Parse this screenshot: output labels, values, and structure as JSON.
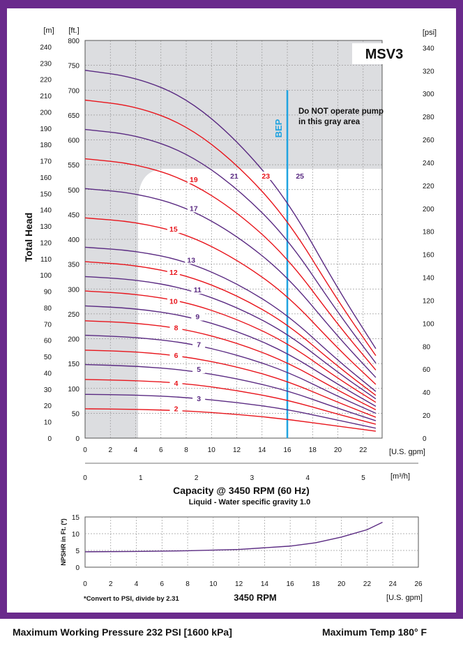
{
  "chart_data": [
    {
      "type": "line",
      "title": "MSV3",
      "xlabel": "Capacity @ 3450 RPM (60 Hz)",
      "x_unit_primary": "[U.S. gpm]",
      "x_unit_secondary": "[m³/h]",
      "subtitle": "Liquid - Water specific gravity 1.0",
      "ylabel": "Total Head",
      "y_unit_m": "[m]",
      "y_unit_ft": "[ft.]",
      "y2_unit": "[psi]",
      "xlim": [
        0,
        23.5
      ],
      "ylim_ft": [
        0,
        800
      ],
      "x_ticks": [
        "0",
        "2",
        "4",
        "6",
        "8",
        "10",
        "12",
        "14",
        "16",
        "18",
        "20",
        "22"
      ],
      "x_secondary_ticks": [
        "0",
        "1",
        "2",
        "3",
        "4",
        "5"
      ],
      "y_ft_ticks": [
        "0",
        "50",
        "100",
        "150",
        "200",
        "250",
        "300",
        "350",
        "400",
        "450",
        "500",
        "550",
        "600",
        "650",
        "700",
        "750",
        "800"
      ],
      "y_m_ticks": [
        "0",
        "10",
        "20",
        "30",
        "40",
        "50",
        "60",
        "70",
        "80",
        "90",
        "100",
        "110",
        "120",
        "130",
        "140",
        "150",
        "160",
        "170",
        "180",
        "190",
        "200",
        "210",
        "220",
        "230",
        "240"
      ],
      "y_psi_ticks": [
        "0",
        "20",
        "40",
        "60",
        "80",
        "100",
        "120",
        "140",
        "160",
        "180",
        "200",
        "220",
        "240",
        "260",
        "280",
        "300",
        "320",
        "340"
      ],
      "bep_label": "BEP",
      "bep_x": 16,
      "warning_text": [
        "Do NOT operate pump",
        "in this gray area"
      ],
      "series": [
        {
          "name": "2",
          "color": "#e8141b",
          "x": [
            0,
            4,
            8,
            12,
            16,
            20,
            23
          ],
          "y": [
            59,
            58,
            55,
            48,
            38,
            24,
            14
          ]
        },
        {
          "name": "3",
          "color": "#5a2a82",
          "x": [
            0,
            4,
            8,
            12,
            16,
            20,
            23
          ],
          "y": [
            88,
            87,
            82,
            72,
            58,
            36,
            20
          ]
        },
        {
          "name": "4",
          "color": "#e8141b",
          "x": [
            0,
            4,
            8,
            12,
            16,
            20,
            23
          ],
          "y": [
            118,
            116,
            110,
            96,
            77,
            48,
            28
          ]
        },
        {
          "name": "5",
          "color": "#5a2a82",
          "x": [
            0,
            4,
            8,
            12,
            16,
            20,
            23
          ],
          "y": [
            148,
            145,
            137,
            120,
            96,
            60,
            35
          ]
        },
        {
          "name": "6",
          "color": "#e8141b",
          "x": [
            0,
            4,
            8,
            12,
            16,
            20,
            23
          ],
          "y": [
            177,
            174,
            164,
            144,
            115,
            72,
            42
          ]
        },
        {
          "name": "7",
          "color": "#5a2a82",
          "x": [
            0,
            4,
            8,
            12,
            16,
            20,
            23
          ],
          "y": [
            207,
            203,
            192,
            168,
            134,
            84,
            50
          ]
        },
        {
          "name": "8",
          "color": "#e8141b",
          "x": [
            0,
            4,
            8,
            12,
            16,
            20,
            23
          ],
          "y": [
            236,
            232,
            219,
            192,
            153,
            96,
            57
          ]
        },
        {
          "name": "9",
          "color": "#5a2a82",
          "x": [
            0,
            4,
            8,
            12,
            16,
            20,
            23
          ],
          "y": [
            266,
            261,
            246,
            216,
            172,
            108,
            64
          ]
        },
        {
          "name": "10",
          "color": "#e8141b",
          "x": [
            0,
            4,
            8,
            12,
            16,
            20,
            23
          ],
          "y": [
            296,
            290,
            274,
            240,
            192,
            120,
            72
          ]
        },
        {
          "name": "11",
          "color": "#5a2a82",
          "x": [
            0,
            4,
            8,
            12,
            16,
            20,
            23
          ],
          "y": [
            325,
            319,
            301,
            264,
            211,
            132,
            79
          ]
        },
        {
          "name": "12",
          "color": "#e8141b",
          "x": [
            0,
            4,
            8,
            12,
            16,
            20,
            23
          ],
          "y": [
            355,
            348,
            328,
            288,
            230,
            144,
            86
          ]
        },
        {
          "name": "13",
          "color": "#5a2a82",
          "x": [
            0,
            4,
            8,
            12,
            16,
            20,
            23
          ],
          "y": [
            384,
            377,
            356,
            312,
            249,
            156,
            94
          ]
        },
        {
          "name": "15",
          "color": "#e8141b",
          "x": [
            0,
            4,
            8,
            12,
            16,
            20,
            23
          ],
          "y": [
            443,
            435,
            411,
            360,
            288,
            180,
            108
          ]
        },
        {
          "name": "17",
          "color": "#5a2a82",
          "x": [
            0,
            4,
            8,
            12,
            16,
            20,
            23
          ],
          "y": [
            502,
            493,
            465,
            408,
            326,
            204,
            122
          ]
        },
        {
          "name": "19",
          "color": "#e8141b",
          "x": [
            0,
            4,
            8,
            12,
            16,
            20,
            23
          ],
          "y": [
            562,
            552,
            520,
            456,
            364,
            228,
            137
          ]
        },
        {
          "name": "21",
          "color": "#5a2a82",
          "x": [
            0,
            4,
            8,
            12,
            16,
            20,
            23
          ],
          "y": [
            621,
            610,
            575,
            504,
            403,
            252,
            151
          ]
        },
        {
          "name": "23",
          "color": "#e8141b",
          "x": [
            0,
            4,
            8,
            12,
            16,
            20,
            23
          ],
          "y": [
            680,
            668,
            630,
            552,
            441,
            276,
            166
          ]
        },
        {
          "name": "25",
          "color": "#5a2a82",
          "x": [
            0,
            4,
            8,
            12,
            16,
            20,
            23
          ],
          "y": [
            740,
            726,
            685,
            600,
            480,
            300,
            180
          ]
        }
      ],
      "curve_labels": [
        {
          "name": "2",
          "x": 7.2,
          "y": 57
        },
        {
          "name": "3",
          "x": 9.0,
          "y": 77
        },
        {
          "name": "4",
          "x": 7.2,
          "y": 108
        },
        {
          "name": "5",
          "x": 9.0,
          "y": 136
        },
        {
          "name": "6",
          "x": 7.2,
          "y": 164
        },
        {
          "name": "7",
          "x": 9.0,
          "y": 186
        },
        {
          "name": "8",
          "x": 7.2,
          "y": 220
        },
        {
          "name": "9",
          "x": 8.9,
          "y": 242
        },
        {
          "name": "10",
          "x": 7.0,
          "y": 273
        },
        {
          "name": "11",
          "x": 8.9,
          "y": 296
        },
        {
          "name": "12",
          "x": 7.0,
          "y": 331
        },
        {
          "name": "13",
          "x": 8.4,
          "y": 356
        },
        {
          "name": "15",
          "x": 7.0,
          "y": 418
        },
        {
          "name": "17",
          "x": 8.6,
          "y": 460
        },
        {
          "name": "19",
          "x": 8.6,
          "y": 518
        },
        {
          "name": "21",
          "x": 11.8,
          "y": 525
        },
        {
          "name": "23",
          "x": 14.3,
          "y": 525
        },
        {
          "name": "25",
          "x": 17.0,
          "y": 525
        }
      ]
    },
    {
      "type": "line",
      "xlabel": "3450 RPM",
      "x_unit": "[U.S. gpm]",
      "ylabel": "NPSHR in Ft. (*)",
      "xlim": [
        0,
        26
      ],
      "ylim": [
        0,
        15
      ],
      "x_ticks": [
        "0",
        "2",
        "4",
        "6",
        "8",
        "10",
        "12",
        "14",
        "16",
        "18",
        "20",
        "22",
        "24",
        "26"
      ],
      "y_ticks": [
        "0",
        "5",
        "10",
        "15"
      ],
      "series": [
        {
          "name": "NPSHR",
          "color": "#5a2a82",
          "x": [
            0,
            4,
            8,
            12,
            16,
            18,
            20,
            22,
            23.2
          ],
          "y": [
            4.6,
            4.7,
            4.9,
            5.3,
            6.3,
            7.3,
            9.0,
            11.2,
            13.4
          ]
        }
      ],
      "note": "*Convert to PSI, divide by 2.31"
    }
  ],
  "footer": {
    "left": "Maximum Working Pressure 232 PSI [1600 kPa]",
    "right": "Maximum Temp 180° F"
  }
}
